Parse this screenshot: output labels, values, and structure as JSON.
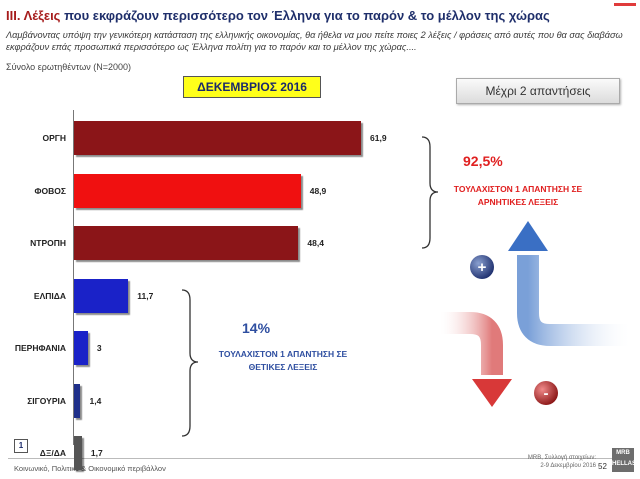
{
  "header": {
    "title_prefix": "ΙΙΙ. Λέξεις",
    "title_rest": " που εκφράζουν περισσότερο τον Έλληνα για το παρόν & το μέλλον της χώρας",
    "subtitle": "Λαμβάνοντας υπόψη την γενικότερη κατάσταση της ελληνικής οικονομίας, θα ήθελα να μου πείτε ποιες 2 λέξεις / φράσεις από αυτές που θα σας διαβάσω εκφράζουν επάς προσωπικά περισσότερο ως Έλληνα πολίτη για το παρόν και το μέλλον της χώρας....",
    "base": "Σύνολο ερωτηθέντων (N=2000)"
  },
  "period_label": "ΔΕΚΕΜΒΡΙΟΣ 2016",
  "answers_label": "Μέχρι 2 απαντήσεις",
  "colors": {
    "dark_red": "#8b1518",
    "bright_red": "#f01010",
    "blue": "#1a22c8",
    "dark_blue": "#1f2f8a",
    "grey": "#555555"
  },
  "chart_data": {
    "type": "bar",
    "orientation": "horizontal",
    "categories": [
      "ΟΡΓΗ",
      "ΦΟΒΟΣ",
      "ΝΤΡΟΠΗ",
      "ΕΛΠΙΔΑ",
      "ΠΕΡΗΦΑΝΙΑ",
      "ΣΙΓΟΥΡΙΑ",
      "ΔΞ/ΔΑ"
    ],
    "values": [
      61.9,
      48.9,
      48.4,
      11.7,
      3,
      1.4,
      1.7
    ],
    "value_labels": [
      "61,9",
      "48,9",
      "48,4",
      "11,7",
      "3",
      "1,4",
      "1,7"
    ],
    "bar_colors": [
      "#8b1518",
      "#f01010",
      "#8b1518",
      "#1a22c8",
      "#1a22c8",
      "#1f2f8a",
      "#555555"
    ],
    "xlim": [
      0,
      65
    ],
    "grid": false,
    "legend": "none"
  },
  "annotations": {
    "negative_pct": "92,5%",
    "negative_text": "ΤΟΥΛΑΧΙΣΤΟΝ 1 ΑΠΑΝΤΗΣΗ ΣΕ ΑΡΝΗΤΙΚΕΣ ΛΕΞΕΙΣ",
    "positive_pct": "14%",
    "positive_text": "ΤΟΥΛΑΧΙΣΤΟΝ 1 ΑΠΑΝΤΗΣΗ ΣΕ ΘΕΤΙΚΕΣ ΛΕΞΕΙΣ",
    "plus_symbol": "+",
    "minus_symbol": "-"
  },
  "footer": {
    "slide_box": "1",
    "left": "Κοινωνικό, Πολιτικό & Οικονομικό περιβάλλον",
    "right_line1": "MRB, Συλλογή στοιχείων:",
    "right_line2": "2-9 Δεκεμβρίου 2016",
    "page": "52",
    "logo": "MRB HELLAS"
  }
}
